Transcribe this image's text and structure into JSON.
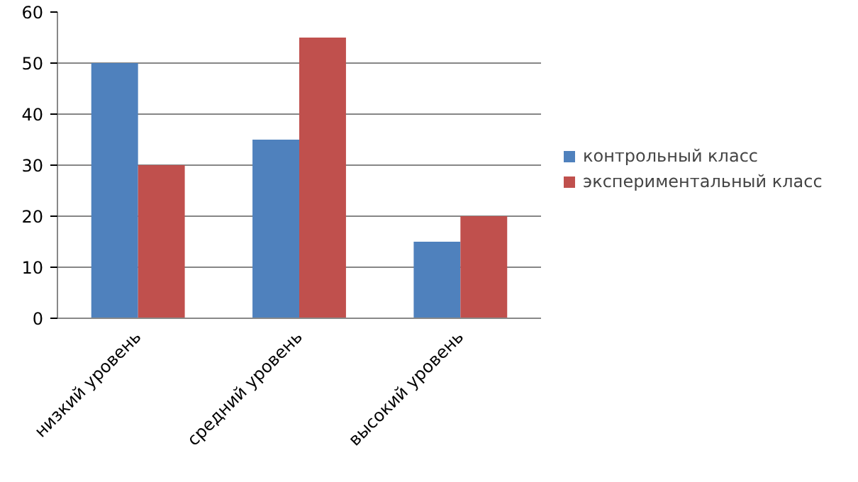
{
  "chart_data": {
    "type": "bar",
    "categories": [
      "низкий уровень",
      "средний уровень",
      "высокий уровень"
    ],
    "series": [
      {
        "name": "контрольный класс",
        "color": "#4f81bd",
        "values": [
          50,
          35,
          15
        ]
      },
      {
        "name": "экспериментальный класс",
        "color": "#c0504d",
        "values": [
          30,
          55,
          20
        ]
      }
    ],
    "ylim": [
      0,
      60
    ],
    "yticks": [
      0,
      10,
      20,
      30,
      40,
      50,
      60
    ],
    "grid": "y",
    "legend": "right"
  }
}
